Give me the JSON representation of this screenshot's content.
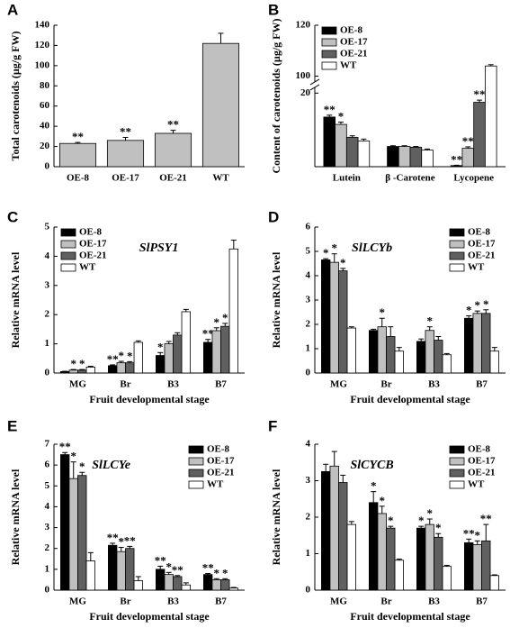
{
  "chart_data": [
    {
      "type": "bar",
      "panel": "A",
      "ylabel": "Total carotenoids (µg/g FW)",
      "categories": [
        "OE-8",
        "OE-17",
        "OE-21",
        "WT"
      ],
      "values": [
        23,
        26,
        33,
        122
      ],
      "errors": [
        1,
        3,
        3,
        10
      ],
      "sig": [
        "**",
        "**",
        "**",
        null
      ],
      "color": "#c0c0c0",
      "ylim": [
        0,
        140
      ],
      "yticks": [
        0,
        20,
        40,
        60,
        80,
        100,
        120,
        140
      ]
    },
    {
      "type": "bar",
      "panel": "B",
      "ylabel": "Content of carotenoids (µg/g FW)",
      "categories": [
        "Lutein",
        "β -Carotene",
        "Lycopene"
      ],
      "ylim": [
        0,
        120
      ],
      "ybreak": [
        20,
        100
      ],
      "yticks": [
        20,
        100,
        120
      ],
      "legend": "upper left",
      "series": [
        {
          "name": "OE-8",
          "color": "#000000",
          "values": [
            13.5,
            5.5,
            0.3
          ],
          "errors": [
            0.5,
            0.2,
            0.1
          ],
          "sig": [
            "**",
            null,
            "**"
          ]
        },
        {
          "name": "OE-17",
          "color": "#c0c0c0",
          "values": [
            11.5,
            5.5,
            5
          ],
          "errors": [
            0.6,
            0.2,
            0.4
          ],
          "sig": [
            "*",
            null,
            "**"
          ]
        },
        {
          "name": "OE-21",
          "color": "#606060",
          "values": [
            8,
            5.3,
            17.5
          ],
          "errors": [
            0.4,
            0.2,
            0.6
          ],
          "sig": [
            null,
            null,
            "**"
          ]
        },
        {
          "name": "WT",
          "color": "#ffffff",
          "values": [
            7,
            4.5,
            104
          ],
          "errors": [
            0.5,
            0.3,
            0.5
          ],
          "sig": [
            null,
            null,
            null
          ]
        }
      ]
    },
    {
      "type": "bar",
      "panel": "C",
      "title": "SlPSY1",
      "xlabel": "Fruit developmental stage",
      "ylabel": "Relative mRNA level",
      "categories": [
        "MG",
        "Br",
        "B3",
        "B7"
      ],
      "ylim": [
        0,
        5
      ],
      "yticks": [
        0,
        1,
        2,
        3,
        4,
        5
      ],
      "legend": "upper left",
      "series": [
        {
          "name": "OE-8",
          "color": "#000000",
          "values": [
            0.05,
            0.25,
            0.6,
            1.05
          ],
          "errors": [
            0.01,
            0.03,
            0.1,
            0.1
          ],
          "sig": [
            null,
            "**",
            "*",
            "**"
          ]
        },
        {
          "name": "OE-17",
          "color": "#c0c0c0",
          "values": [
            0.1,
            0.35,
            1.0,
            1.45
          ],
          "errors": [
            0.02,
            0.05,
            0.08,
            0.1
          ],
          "sig": [
            "*",
            "*",
            null,
            "*"
          ]
        },
        {
          "name": "OE-21",
          "color": "#606060",
          "values": [
            0.1,
            0.35,
            1.3,
            1.6
          ],
          "errors": [
            0.02,
            0.04,
            0.08,
            0.1
          ],
          "sig": [
            "*",
            "*",
            null,
            "*"
          ]
        },
        {
          "name": "WT",
          "color": "#ffffff",
          "values": [
            0.2,
            1.05,
            2.1,
            4.25
          ],
          "errors": [
            0.03,
            0.05,
            0.08,
            0.3
          ],
          "sig": [
            null,
            null,
            null,
            null
          ]
        }
      ]
    },
    {
      "type": "bar",
      "panel": "D",
      "title": "SlLCYb",
      "xlabel": "Fruit developmental stage",
      "ylabel": "Relative mRNA level",
      "categories": [
        "MG",
        "Br",
        "B3",
        "B7"
      ],
      "ylim": [
        0,
        6
      ],
      "yticks": [
        0,
        1,
        2,
        3,
        4,
        5,
        6
      ],
      "legend": "upper right",
      "series": [
        {
          "name": "OE-8",
          "color": "#000000",
          "values": [
            4.65,
            1.75,
            1.3,
            2.25
          ],
          "errors": [
            0.05,
            0.05,
            0.1,
            0.1
          ],
          "sig": [
            "*",
            null,
            null,
            "*"
          ]
        },
        {
          "name": "OE-17",
          "color": "#c0c0c0",
          "values": [
            4.55,
            1.9,
            1.75,
            2.45
          ],
          "errors": [
            0.35,
            0.35,
            0.15,
            0.1
          ],
          "sig": [
            "*",
            "*",
            "*",
            "*"
          ]
        },
        {
          "name": "OE-21",
          "color": "#606060",
          "values": [
            4.2,
            1.5,
            1.35,
            2.45
          ],
          "errors": [
            0.1,
            0.4,
            0.15,
            0.15
          ],
          "sig": [
            "*",
            null,
            null,
            "*"
          ]
        },
        {
          "name": "WT",
          "color": "#ffffff",
          "values": [
            1.85,
            0.9,
            0.75,
            0.9
          ],
          "errors": [
            0.05,
            0.15,
            0.05,
            0.15
          ],
          "sig": [
            null,
            null,
            null,
            null
          ]
        }
      ]
    },
    {
      "type": "bar",
      "panel": "E",
      "title": "SlLCYe",
      "xlabel": "Fruit developmental stage",
      "ylabel": "Relative mRNA level",
      "categories": [
        "MG",
        "Br",
        "B3",
        "B7"
      ],
      "ylim": [
        0,
        7
      ],
      "yticks": [
        0,
        1,
        2,
        3,
        4,
        5,
        6,
        7
      ],
      "legend": "upper right",
      "series": [
        {
          "name": "OE-8",
          "color": "#000000",
          "values": [
            6.5,
            2.15,
            1.0,
            0.75
          ],
          "errors": [
            0.1,
            0.1,
            0.15,
            0.05
          ],
          "sig": [
            "**",
            "**",
            "**",
            "**"
          ]
        },
        {
          "name": "OE-17",
          "color": "#c0c0c0",
          "values": [
            5.35,
            1.85,
            0.75,
            0.5
          ],
          "errors": [
            0.8,
            0.2,
            0.1,
            0.05
          ],
          "sig": [
            "*",
            "*",
            "*",
            "*"
          ]
        },
        {
          "name": "OE-21",
          "color": "#606060",
          "values": [
            5.5,
            2.0,
            0.65,
            0.5
          ],
          "errors": [
            0.15,
            0.1,
            0.05,
            0.05
          ],
          "sig": [
            "*",
            "**",
            "**",
            "*"
          ]
        },
        {
          "name": "WT",
          "color": "#ffffff",
          "values": [
            1.4,
            0.45,
            0.25,
            0.1
          ],
          "errors": [
            0.4,
            0.2,
            0.1,
            0.03
          ],
          "sig": [
            null,
            null,
            null,
            null
          ]
        }
      ]
    },
    {
      "type": "bar",
      "panel": "F",
      "title": "SlCYCB",
      "xlabel": "Fruit developmental stage",
      "ylabel": "Relative mRNA level",
      "categories": [
        "MG",
        "Br",
        "B3",
        "B7"
      ],
      "ylim": [
        0,
        4
      ],
      "yticks": [
        0,
        1,
        2,
        3,
        4
      ],
      "legend": "upper right",
      "series": [
        {
          "name": "OE-8",
          "color": "#000000",
          "values": [
            3.25,
            2.4,
            1.7,
            1.3
          ],
          "errors": [
            0.2,
            0.3,
            0.05,
            0.1
          ],
          "sig": [
            null,
            "*",
            "*",
            "**"
          ]
        },
        {
          "name": "OE-17",
          "color": "#c0c0c0",
          "values": [
            3.4,
            2.1,
            1.8,
            1.25
          ],
          "errors": [
            0.4,
            0.2,
            0.15,
            0.1
          ],
          "sig": [
            null,
            "*",
            "*",
            "*"
          ]
        },
        {
          "name": "OE-21",
          "color": "#606060",
          "values": [
            2.95,
            1.7,
            1.45,
            1.35
          ],
          "errors": [
            0.2,
            0.05,
            0.1,
            0.45
          ],
          "sig": [
            null,
            "*",
            "*",
            "**"
          ]
        },
        {
          "name": "WT",
          "color": "#ffffff",
          "values": [
            1.8,
            0.82,
            0.65,
            0.4
          ],
          "errors": [
            0.08,
            0.03,
            0.03,
            0.02
          ],
          "sig": [
            null,
            null,
            null,
            null
          ]
        }
      ]
    }
  ]
}
